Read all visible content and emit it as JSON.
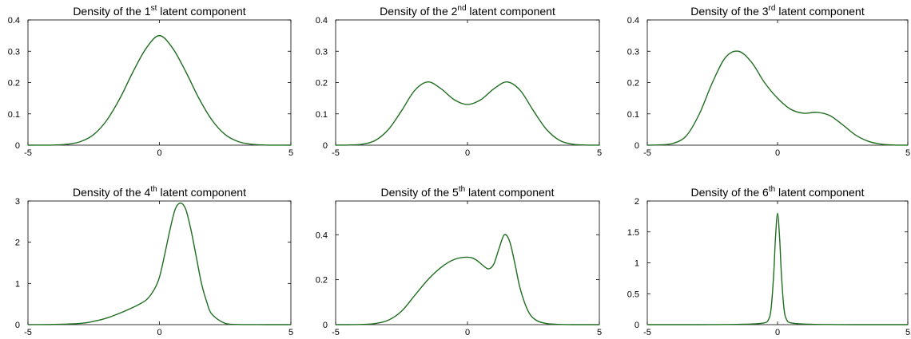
{
  "figure": {
    "curve_color": "#1f6e1f",
    "axis_color": "#000000"
  },
  "chart_data": [
    {
      "type": "line",
      "title": "Density of the 1st latent component",
      "title_parts": [
        "Density of the 1",
        "st",
        " latent component"
      ],
      "xlim": [
        -5,
        5
      ],
      "ylim": [
        0,
        0.4
      ],
      "xticks": [
        -5,
        0,
        5
      ],
      "yticks": [
        0,
        0.1,
        0.2,
        0.3,
        0.4
      ],
      "xtick_labels": [
        "-5",
        "0",
        "5"
      ],
      "ytick_labels": [
        "0",
        "0.1",
        "0.2",
        "0.3",
        "0.4"
      ],
      "x": [
        -5,
        -4.5,
        -4,
        -3.5,
        -3,
        -2.5,
        -2,
        -1.5,
        -1,
        -0.5,
        0,
        0.5,
        1,
        1.5,
        2,
        2.5,
        3,
        3.5,
        4,
        4.5,
        5
      ],
      "y": [
        0.0,
        0.0001,
        0.0005,
        0.003,
        0.0115,
        0.034,
        0.08,
        0.15,
        0.235,
        0.31,
        0.35,
        0.31,
        0.235,
        0.15,
        0.08,
        0.034,
        0.0115,
        0.003,
        0.0005,
        0.0001,
        0.0
      ]
    },
    {
      "type": "line",
      "title": "Density of the 2nd latent component",
      "title_parts": [
        "Density of the 2",
        "nd",
        " latent component"
      ],
      "xlim": [
        -5,
        5
      ],
      "ylim": [
        0,
        0.4
      ],
      "xticks": [
        -5,
        0,
        5
      ],
      "yticks": [
        0,
        0.1,
        0.2,
        0.3,
        0.4
      ],
      "xtick_labels": [
        "-5",
        "0",
        "5"
      ],
      "ytick_labels": [
        "0",
        "0.1",
        "0.2",
        "0.3",
        "0.4"
      ],
      "x": [
        -5,
        -4.5,
        -4,
        -3.5,
        -3,
        -2.5,
        -2,
        -1.5,
        -1,
        -0.5,
        0,
        0.5,
        1,
        1.5,
        2,
        2.5,
        3,
        3.5,
        4,
        4.5,
        5
      ],
      "y": [
        0.0,
        0.0005,
        0.003,
        0.015,
        0.05,
        0.11,
        0.175,
        0.202,
        0.18,
        0.145,
        0.13,
        0.145,
        0.18,
        0.202,
        0.175,
        0.11,
        0.05,
        0.015,
        0.003,
        0.0005,
        0.0
      ]
    },
    {
      "type": "line",
      "title": "Density of the 3rd latent component",
      "title_parts": [
        "Density of the 3",
        "rd",
        " latent component"
      ],
      "xlim": [
        -5,
        5
      ],
      "ylim": [
        0,
        0.4
      ],
      "xticks": [
        -5,
        0,
        5
      ],
      "yticks": [
        0,
        0.1,
        0.2,
        0.3,
        0.4
      ],
      "xtick_labels": [
        "-5",
        "0",
        "5"
      ],
      "ytick_labels": [
        "0",
        "0.1",
        "0.2",
        "0.3",
        "0.4"
      ],
      "x": [
        -5,
        -4.5,
        -4,
        -3.5,
        -3,
        -2.5,
        -2,
        -1.5,
        -1,
        -0.5,
        0,
        0.5,
        1,
        1.5,
        2,
        2.5,
        3,
        3.5,
        4,
        4.5,
        5
      ],
      "y": [
        0.0,
        0.001,
        0.006,
        0.03,
        0.1,
        0.2,
        0.28,
        0.3,
        0.265,
        0.2,
        0.15,
        0.115,
        0.102,
        0.105,
        0.095,
        0.065,
        0.032,
        0.012,
        0.003,
        0.0005,
        0.0
      ]
    },
    {
      "type": "line",
      "title": "Density of the 4th latent component",
      "title_parts": [
        "Density of the 4",
        "th",
        " latent component"
      ],
      "xlim": [
        -5,
        5
      ],
      "ylim": [
        0,
        3
      ],
      "xticks": [
        -5,
        0,
        5
      ],
      "yticks": [
        0,
        1,
        2,
        3
      ],
      "xtick_labels": [
        "-5",
        "0",
        "5"
      ],
      "ytick_labels": [
        "0",
        "1",
        "2",
        "3"
      ],
      "x": [
        -5,
        -4,
        -3,
        -2.5,
        -2,
        -1.5,
        -1,
        -0.5,
        -0.2,
        0,
        0.2,
        0.4,
        0.6,
        0.8,
        1,
        1.2,
        1.4,
        1.6,
        1.8,
        2,
        2.5,
        3,
        4,
        5
      ],
      "y": [
        0.0,
        0.005,
        0.03,
        0.08,
        0.16,
        0.28,
        0.42,
        0.6,
        0.85,
        1.15,
        1.7,
        2.3,
        2.8,
        2.95,
        2.8,
        2.3,
        1.65,
        1.0,
        0.55,
        0.25,
        0.03,
        0.004,
        0.0,
        0.0
      ]
    },
    {
      "type": "line",
      "title": "Density of the 5th latent component",
      "title_parts": [
        "Density of the 5",
        "th",
        " latent component"
      ],
      "xlim": [
        -5,
        5
      ],
      "ylim": [
        0,
        0.55
      ],
      "xticks": [
        -5,
        0,
        5
      ],
      "yticks": [
        0,
        0.2,
        0.4
      ],
      "xtick_labels": [
        "-5",
        "0",
        "5"
      ],
      "ytick_labels": [
        "0",
        "0.2",
        "0.4"
      ],
      "x": [
        -5,
        -4.5,
        -4,
        -3.5,
        -3,
        -2.5,
        -2,
        -1.5,
        -1,
        -0.5,
        0,
        0.3,
        0.6,
        0.8,
        1.0,
        1.2,
        1.4,
        1.6,
        1.8,
        2.0,
        2.3,
        2.6,
        3,
        3.5,
        4,
        5
      ],
      "y": [
        0.0,
        0.0,
        0.001,
        0.005,
        0.02,
        0.06,
        0.13,
        0.2,
        0.255,
        0.29,
        0.3,
        0.29,
        0.262,
        0.248,
        0.27,
        0.34,
        0.4,
        0.37,
        0.27,
        0.16,
        0.06,
        0.02,
        0.005,
        0.001,
        0.0,
        0.0
      ]
    },
    {
      "type": "line",
      "title": "Density of the 6th latent component",
      "title_parts": [
        "Density of the 6",
        "th",
        " latent component"
      ],
      "xlim": [
        -5,
        5
      ],
      "ylim": [
        0,
        2
      ],
      "xticks": [
        -5,
        0,
        5
      ],
      "yticks": [
        0,
        0.5,
        1,
        1.5,
        2
      ],
      "xtick_labels": [
        "-5",
        "0",
        "5"
      ],
      "ytick_labels": [
        "0",
        "0.5",
        "1",
        "1.5",
        "2"
      ],
      "x": [
        -5,
        -3,
        -2,
        -1,
        -0.5,
        -0.35,
        -0.25,
        -0.15,
        -0.08,
        0,
        0.08,
        0.15,
        0.25,
        0.35,
        0.5,
        1,
        2,
        3,
        5
      ],
      "y": [
        0.0,
        0.0,
        0.002,
        0.01,
        0.03,
        0.08,
        0.25,
        0.8,
        1.4,
        1.8,
        1.4,
        0.8,
        0.25,
        0.08,
        0.03,
        0.01,
        0.002,
        0.0,
        0.0
      ]
    }
  ]
}
